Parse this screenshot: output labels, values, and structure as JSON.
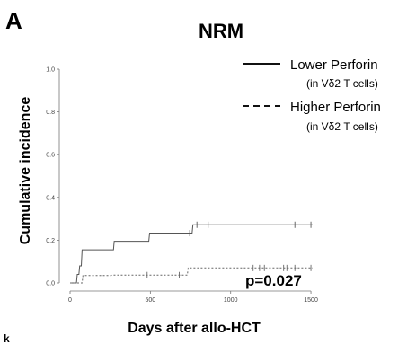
{
  "panel_letter": "A",
  "stray_text": "k",
  "chart_data": {
    "type": "line",
    "title": "NRM",
    "xlabel": "Days after allo-HCT",
    "ylabel": "Cumulative incidence",
    "xlim": [
      0,
      1550
    ],
    "ylim": [
      0,
      1.0
    ],
    "x_ticks": [
      0,
      500,
      1000,
      1500
    ],
    "y_ticks": [
      0.0,
      0.2,
      0.4,
      0.6,
      0.8,
      1.0
    ],
    "y_tick_labels": [
      "0.0",
      "0.2",
      "0.4",
      "0.6",
      "0.8",
      "1.0"
    ],
    "annotation": "p=0.027",
    "legend_position": "top-right",
    "grid": false,
    "series": [
      {
        "name": "Lower Perforin",
        "name_sub": "(in Vδ2 T cells)",
        "line_style": "solid",
        "step": [
          [
            0,
            0.0
          ],
          [
            40,
            0.0
          ],
          [
            45,
            0.04
          ],
          [
            55,
            0.04
          ],
          [
            60,
            0.08
          ],
          [
            70,
            0.08
          ],
          [
            75,
            0.155
          ],
          [
            270,
            0.155
          ],
          [
            275,
            0.195
          ],
          [
            490,
            0.195
          ],
          [
            495,
            0.233
          ],
          [
            760,
            0.233
          ],
          [
            765,
            0.272
          ],
          [
            1510,
            0.272
          ]
        ],
        "censored_x": [
          745,
          790,
          860,
          1400,
          1500
        ]
      },
      {
        "name": "Higher Perforin",
        "name_sub": "(in Vδ2 T cells)",
        "line_style": "dashed",
        "step": [
          [
            0,
            0.0
          ],
          [
            75,
            0.0
          ],
          [
            80,
            0.035
          ],
          [
            255,
            0.035
          ],
          [
            262,
            0.037
          ],
          [
            730,
            0.037
          ],
          [
            735,
            0.07
          ],
          [
            1510,
            0.07
          ]
        ],
        "censored_x": [
          480,
          680,
          1140,
          1180,
          1210,
          1330,
          1350,
          1400,
          1500
        ]
      }
    ]
  }
}
